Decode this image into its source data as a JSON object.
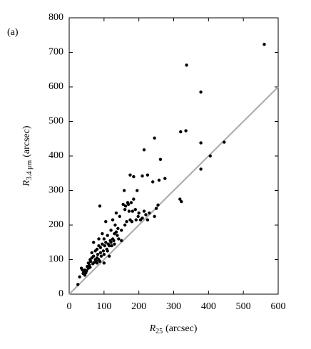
{
  "chart_data": {
    "type": "scatter",
    "panel_label": "(a)",
    "xlabel": {
      "symbol": "R",
      "subscript": "25",
      "unit": "(arcsec)"
    },
    "ylabel": {
      "symbol": "R",
      "subscript": "3.4 μm",
      "unit": "(arcsec)"
    },
    "xlim": [
      0,
      600
    ],
    "ylim": [
      0,
      800
    ],
    "xticks": [
      0,
      100,
      200,
      300,
      400,
      500,
      600
    ],
    "yticks": [
      0,
      100,
      200,
      300,
      400,
      500,
      600,
      700,
      800
    ],
    "color": "#000000",
    "reference_line": {
      "x": [
        0,
        600
      ],
      "y": [
        0,
        600
      ],
      "color": "#aaaaaa"
    },
    "x": [
      25,
      30,
      35,
      38,
      40,
      42,
      45,
      45,
      48,
      50,
      52,
      55,
      55,
      58,
      60,
      60,
      62,
      65,
      65,
      68,
      70,
      70,
      72,
      75,
      75,
      78,
      80,
      80,
      80,
      82,
      85,
      85,
      85,
      88,
      88,
      90,
      90,
      92,
      95,
      95,
      98,
      100,
      100,
      100,
      102,
      105,
      105,
      108,
      110,
      110,
      112,
      115,
      115,
      118,
      120,
      120,
      122,
      125,
      125,
      128,
      130,
      130,
      132,
      135,
      135,
      138,
      140,
      142,
      145,
      150,
      150,
      155,
      158,
      160,
      160,
      162,
      165,
      168,
      170,
      172,
      175,
      175,
      178,
      180,
      182,
      185,
      185,
      190,
      192,
      195,
      198,
      200,
      205,
      210,
      210,
      215,
      215,
      220,
      225,
      225,
      230,
      240,
      245,
      245,
      250,
      255,
      258,
      262,
      275,
      318,
      322,
      320,
      335,
      337,
      378,
      378,
      378,
      405,
      445,
      560
    ],
    "values": [
      28,
      50,
      75,
      70,
      60,
      65,
      70,
      55,
      62,
      68,
      80,
      75,
      90,
      85,
      100,
      78,
      95,
      105,
      120,
      88,
      110,
      150,
      92,
      100,
      125,
      95,
      90,
      130,
      105,
      115,
      100,
      140,
      160,
      95,
      255,
      120,
      135,
      110,
      175,
      145,
      125,
      90,
      115,
      160,
      140,
      210,
      150,
      130,
      125,
      170,
      145,
      110,
      140,
      155,
      150,
      185,
      140,
      160,
      215,
      155,
      145,
      175,
      200,
      180,
      235,
      170,
      190,
      160,
      225,
      185,
      155,
      260,
      300,
      245,
      200,
      255,
      210,
      265,
      260,
      240,
      345,
      215,
      265,
      210,
      240,
      340,
      275,
      245,
      215,
      300,
      225,
      235,
      215,
      342,
      220,
      418,
      240,
      230,
      345,
      215,
      235,
      325,
      452,
      225,
      248,
      258,
      330,
      390,
      335,
      275,
      268,
      470,
      473,
      663,
      585,
      438,
      362,
      400,
      440,
      723
    ]
  }
}
